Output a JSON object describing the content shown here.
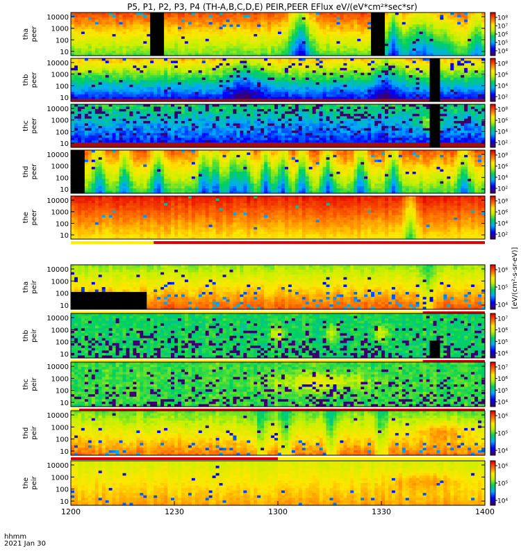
{
  "chart_data": {
    "type": "heatmap",
    "title": "P5, P1, P2, P3, P4 (TH-A,B,C,D,E) PEIR,PEER EFlux eV/(eV*cm²*sec*sr)",
    "x_ticks": [
      "1200",
      "1230",
      "1300",
      "1330",
      "1400"
    ],
    "x_label_line1": "hhmm",
    "x_label_line2": "2021 Jan 30",
    "y_ticks": [
      "10000",
      "1000",
      "100",
      "10"
    ],
    "y_scale": "log",
    "colorbar_unit_label": "[eV/(cm²-s-sr-eV)]",
    "panels": [
      {
        "id": "tha_peer",
        "probe": "tha",
        "species": "peer",
        "cbar_ticks": [
          "10⁸",
          "10⁷",
          "10⁶",
          "10⁵",
          "10⁴"
        ],
        "base": 7.4,
        "decay": 0.12,
        "noise": 0.35,
        "dropout": 0.05,
        "gaps": [
          [
            19,
            22.5
          ],
          [
            72.5,
            76
          ]
        ],
        "dips": [
          [
            55,
            3,
            1.4
          ],
          [
            56,
            2,
            1.0
          ],
          [
            78,
            2,
            2.0
          ],
          [
            83,
            2.5,
            1.5
          ],
          [
            86,
            2,
            1.0
          ],
          [
            90,
            3,
            1.2
          ],
          [
            98,
            2,
            1.4
          ]
        ],
        "enh": []
      },
      {
        "id": "thb_peer",
        "probe": "thb",
        "species": "peer",
        "cbar_ticks": [
          "10⁸",
          "10⁶",
          "10⁴",
          "10²"
        ],
        "base": 6.6,
        "decay": 0.2,
        "noise": 0.45,
        "dropout": 0.1,
        "lowband": 1,
        "gaps": [
          [
            87,
            89
          ]
        ],
        "dips": [
          [
            42,
            4,
            1.0
          ],
          [
            76,
            3,
            1.0
          ]
        ],
        "enh": []
      },
      {
        "id": "thc_peer",
        "probe": "thc",
        "species": "peer",
        "cbar_ticks": [
          "10⁸",
          "10⁶",
          "10⁴",
          "10²"
        ],
        "base": 5.0,
        "decay": 0.1,
        "noise": 0.7,
        "dropout": 0.3,
        "lowband": 2,
        "gaps": [
          [
            87,
            89
          ]
        ],
        "dips": [],
        "enh": [
          [
            87,
            3,
            1.5
          ]
        ]
      },
      {
        "id": "thd_peer",
        "probe": "thd",
        "species": "peer",
        "cbar_ticks": [
          "10⁸",
          "10⁶",
          "10⁴",
          "10²"
        ],
        "base": 7.3,
        "decay": 0.12,
        "noise": 0.35,
        "dropout": 0.05,
        "gaps": [
          [
            0,
            3
          ]
        ],
        "dips": [
          [
            7,
            1.5,
            1.5
          ],
          [
            13,
            1.5,
            1.5
          ],
          [
            21,
            1.5,
            1.6
          ],
          [
            32,
            1.5,
            1.8
          ],
          [
            35,
            1.5,
            1.6
          ],
          [
            39,
            1.5,
            1.6
          ],
          [
            42,
            1.5,
            1.7
          ],
          [
            47,
            1.5,
            1.7
          ],
          [
            51,
            1.5,
            1.7
          ],
          [
            56,
            1.5,
            1.6
          ],
          [
            62,
            1.5,
            1.6
          ],
          [
            70,
            1.5,
            1.6
          ],
          [
            78,
            1.5,
            1.5
          ],
          [
            95,
            1.5,
            1.4
          ]
        ],
        "enh": []
      },
      {
        "id": "the_peer",
        "probe": "the",
        "species": "peer",
        "cbar_ticks": [
          "10⁸",
          "10⁶",
          "10⁴",
          "10²"
        ],
        "base": 7.8,
        "decay": 0.08,
        "noise": 0.25,
        "dropout": 0.02,
        "gaps": [],
        "dips": [
          [
            82,
            1.5,
            1.5
          ]
        ],
        "enh": [],
        "status_bar": [
          [
            "yellow",
            0,
            20
          ],
          [
            "red",
            20,
            100
          ]
        ]
      },
      {
        "id": "tha_peir",
        "probe": "tha",
        "species": "peir",
        "cbar_ticks": [
          "10⁶",
          "10⁵",
          "10⁴"
        ],
        "base": 5.6,
        "decay": -0.1,
        "noise": 0.3,
        "dropout": 0.1,
        "gaps": [
          [
            0,
            18
          ]
        ],
        "dips": [
          [
            86,
            2,
            0.8
          ]
        ],
        "enh": [],
        "status_bar": [
          [
            "yellow",
            0,
            85
          ],
          [
            "red",
            85,
            100
          ]
        ]
      },
      {
        "id": "thb_peir",
        "probe": "thb",
        "species": "peir",
        "cbar_ticks": [
          "10⁷",
          "10⁶",
          "10⁵",
          "10⁴"
        ],
        "base": 5.0,
        "decay": 0.0,
        "noise": 0.5,
        "dropout": 0.2,
        "gaps": [
          [
            87,
            89
          ]
        ],
        "dips": [],
        "enh": [
          [
            50,
            1.5,
            1.0
          ],
          [
            63,
            1.5,
            0.9
          ],
          [
            75,
            1.5,
            1.1
          ]
        ],
        "status_bar": [
          [
            "yellow",
            0,
            85
          ],
          [
            "red",
            85,
            100
          ]
        ]
      },
      {
        "id": "thc_peir",
        "probe": "thc",
        "species": "peir",
        "cbar_ticks": [
          "10⁷",
          "10⁶",
          "10⁵",
          "10⁴"
        ],
        "base": 5.2,
        "decay": 0.0,
        "noise": 0.5,
        "dropout": 0.2,
        "gaps": [],
        "dips": [],
        "enh": [
          [
            60,
            12,
            0.9
          ]
        ],
        "status_bar": [
          [
            "yellow",
            0,
            2
          ],
          [
            "red",
            2,
            100
          ]
        ]
      },
      {
        "id": "thd_peir",
        "probe": "thd",
        "species": "peir",
        "cbar_ticks": [
          "10⁶",
          "10⁵",
          "10⁴"
        ],
        "base": 5.4,
        "decay": -0.1,
        "noise": 0.35,
        "dropout": 0.05,
        "gaps": [],
        "dips": [
          [
            46,
            1.5,
            1.0
          ],
          [
            52,
            1.5,
            0.9
          ],
          [
            63,
            1.5,
            0.9
          ],
          [
            75,
            1.5,
            0.8
          ]
        ],
        "enh": [
          [
            90,
            6,
            0.7
          ]
        ],
        "status_bar": [
          [
            "red",
            0,
            50
          ],
          [
            "yellow",
            50,
            100
          ]
        ]
      },
      {
        "id": "the_peir",
        "probe": "the",
        "species": "peir",
        "cbar_ticks": [
          "10⁶",
          "10⁵",
          "10⁴"
        ],
        "base": 6.0,
        "decay": -0.05,
        "noise": 0.2,
        "dropout": 0.02,
        "gaps": [],
        "dips": [],
        "enh": [
          [
            85,
            8,
            0.5
          ]
        ]
      }
    ]
  }
}
